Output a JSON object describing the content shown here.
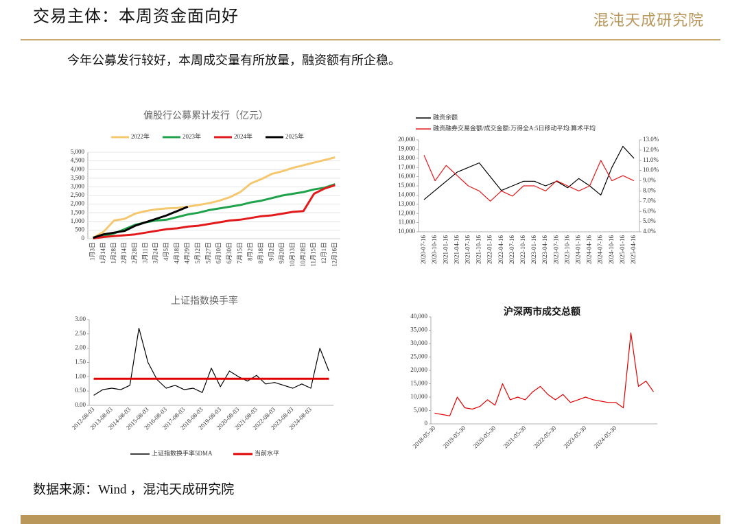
{
  "header": {
    "title": "交易主体：本周资金面向好",
    "logo": "混沌天成研究院"
  },
  "subtitle": "今年公募发行较好，本周成交量有所放量，融资额有所企稳。",
  "source": "数据来源：Wind ，混沌天成研究院",
  "chart_data": [
    {
      "type": "line",
      "title": "偏股行公募累计发行（亿元）",
      "categories": [
        "1月3日",
        "1月14日",
        "1月28日",
        "2月14日",
        "2月28日",
        "3月11日",
        "3月24日",
        "4月5日",
        "4月18日",
        "4月29日",
        "5月12日",
        "5月27日",
        "6月10日",
        "6月30日",
        "7月15日",
        "8月2日",
        "8月18日",
        "9月2日",
        "9月20日",
        "10月13日",
        "10月28日",
        "11月15日",
        "12月1日",
        "12月16日"
      ],
      "series": [
        {
          "name": "2022年",
          "color": "#f5c870",
          "values": [
            50,
            400,
            1050,
            1150,
            1450,
            1600,
            1700,
            1750,
            1780,
            1850,
            1950,
            2050,
            2200,
            2400,
            2700,
            3200,
            3450,
            3750,
            3900,
            4100,
            4250,
            4400,
            4550,
            4700
          ]
        },
        {
          "name": "2023年",
          "color": "#1fa34a",
          "values": [
            20,
            150,
            300,
            550,
            800,
            950,
            1050,
            1100,
            1250,
            1400,
            1500,
            1650,
            1750,
            1850,
            1950,
            2100,
            2200,
            2350,
            2500,
            2600,
            2700,
            2850,
            2950,
            3150
          ]
        },
        {
          "name": "2024年",
          "color": "#e31a1c",
          "values": [
            10,
            100,
            150,
            200,
            250,
            350,
            450,
            550,
            600,
            700,
            750,
            850,
            950,
            1050,
            1100,
            1200,
            1300,
            1350,
            1450,
            1550,
            1600,
            2600,
            2900,
            3100
          ]
        },
        {
          "name": "2025年",
          "color": "#000000",
          "values": [
            50,
            250,
            350,
            450,
            750,
            950,
            1150,
            1350,
            1600,
            1850,
            null,
            null,
            null,
            null,
            null,
            null,
            null,
            null,
            null,
            null,
            null,
            null,
            null,
            null
          ]
        }
      ],
      "ylim": [
        0,
        5000
      ],
      "yticks": [
        0,
        500,
        {
          "value": 1000,
          "label": "1,000"
        },
        {
          "value": 1500,
          "label": "1,500"
        },
        {
          "value": 2000,
          "label": "2,000"
        },
        {
          "value": 2500,
          "label": "2,500"
        },
        {
          "value": 3000,
          "label": "3,000"
        },
        {
          "value": 3500,
          "label": "3,500"
        },
        {
          "value": 4000,
          "label": "4,000"
        },
        {
          "value": 4500,
          "label": "4,500"
        },
        {
          "value": 5000,
          "label": "5,000"
        }
      ],
      "grid": true
    },
    {
      "type": "line",
      "categories": [
        "2020-07-16",
        "2020-10-16",
        "2021-01-16",
        "2021-04-16",
        "2021-07-16",
        "2021-10-16",
        "2022-01-16",
        "2022-04-16",
        "2022-07-16",
        "2022-10-16",
        "2023-01-16",
        "2023-04-16",
        "2023-07-16",
        "2023-10-16",
        "2024-01-16",
        "2024-04-16",
        "2024-07-16",
        "2024-10-16",
        "2025-01-16",
        "2025-04-16"
      ],
      "series": [
        {
          "name": "融资余额",
          "color": "#000000",
          "values": [
            13500,
            14500,
            15500,
            16500,
            17000,
            17500,
            16000,
            14500,
            15000,
            15500,
            15500,
            15000,
            15500,
            14800,
            15800,
            15000,
            14000,
            17000,
            19300,
            18000
          ]
        },
        {
          "name": "融资融券交易金额/成交金额:万得全A:5日移动平均:算术平均",
          "color": "#e31a1c",
          "axis": "y2",
          "values": [
            11.5,
            9.0,
            10.5,
            9.5,
            8.5,
            8.0,
            7.0,
            8.0,
            7.5,
            8.5,
            8.5,
            8.0,
            9.0,
            8.5,
            8.0,
            8.5,
            11.0,
            9.0,
            9.5,
            9.0
          ]
        }
      ],
      "ylim": [
        10000,
        20000
      ],
      "yticks": [
        {
          "value": 10000,
          "label": "10,000"
        },
        {
          "value": 11000,
          "label": "11,000"
        },
        {
          "value": 12000,
          "label": "12,000"
        },
        {
          "value": 13000,
          "label": "13,000"
        },
        {
          "value": 14000,
          "label": "14,000"
        },
        {
          "value": 15000,
          "label": "15,000"
        },
        {
          "value": 16000,
          "label": "16,000"
        },
        {
          "value": 17000,
          "label": "17,000"
        },
        {
          "value": 18000,
          "label": "18,000"
        },
        {
          "value": 19000,
          "label": "19,000"
        },
        {
          "value": 20000,
          "label": "20,000"
        }
      ],
      "y2lim": [
        4,
        13
      ],
      "y2ticks": [
        {
          "value": 4,
          "label": "4.0%"
        },
        {
          "value": 5,
          "label": "5.0%"
        },
        {
          "value": 6,
          "label": "6.0%"
        },
        {
          "value": 7,
          "label": "7.0%"
        },
        {
          "value": 8,
          "label": "8.0%"
        },
        {
          "value": 9,
          "label": "9.0%"
        },
        {
          "value": 10,
          "label": "10.0%"
        },
        {
          "value": 11,
          "label": "11.0%"
        },
        {
          "value": 12,
          "label": "12.0%"
        },
        {
          "value": 13,
          "label": "13.0%"
        }
      ],
      "grid": false
    },
    {
      "type": "line",
      "title": "上证指数换手率",
      "categories": [
        "2012-08-03",
        null,
        "2013-08-03",
        null,
        "2014-08-03",
        null,
        "2015-08-03",
        null,
        "2016-08-03",
        null,
        "2017-08-03",
        null,
        "2018-08-03",
        null,
        "2019-08-03",
        null,
        "2020-08-03",
        null,
        "2021-08-03",
        null,
        "2022-08-03",
        null,
        "2023-08-03",
        null,
        "2024-08-03",
        null,
        null
      ],
      "series": [
        {
          "name": "上证指数换手率5DMA",
          "color": "#000000",
          "values": [
            0.35,
            0.55,
            0.6,
            0.55,
            0.7,
            2.7,
            1.5,
            0.9,
            0.6,
            0.7,
            0.55,
            0.6,
            0.45,
            1.3,
            0.65,
            1.2,
            1.0,
            0.85,
            1.05,
            0.75,
            0.8,
            0.7,
            0.6,
            0.75,
            0.6,
            2.0,
            1.2
          ]
        },
        {
          "name": "当前水平",
          "color": "#e00000",
          "values": [
            0.93,
            0.93,
            0.93,
            0.93,
            0.93,
            0.93,
            0.93,
            0.93,
            0.93,
            0.93,
            0.93,
            0.93,
            0.93,
            0.93,
            0.93,
            0.93,
            0.93,
            0.93,
            0.93,
            0.93,
            0.93,
            0.93,
            0.93,
            0.93,
            0.93,
            0.93,
            0.93
          ]
        }
      ],
      "ylim": [
        0,
        3
      ],
      "yticks": [
        {
          "value": 0,
          "label": "0.00"
        },
        {
          "value": 0.5,
          "label": "0.50"
        },
        {
          "value": 1,
          "label": "1.00"
        },
        {
          "value": 1.5,
          "label": "1.50"
        },
        {
          "value": 2,
          "label": "2.00"
        },
        {
          "value": 2.5,
          "label": "2.50"
        },
        {
          "value": 3,
          "label": "3.00"
        }
      ],
      "grid": false
    },
    {
      "type": "line",
      "title": "沪深两市成交总额",
      "categories": [
        "2018-05-30",
        null,
        null,
        null,
        "2019-05-30",
        null,
        null,
        null,
        "2020-05-30",
        null,
        null,
        null,
        "2021-05-30",
        null,
        null,
        null,
        "2022-05-30",
        null,
        null,
        null,
        "2023-05-30",
        null,
        null,
        null,
        "2024-05-30",
        null,
        null,
        null,
        null,
        null
      ],
      "values": [
        4000,
        3500,
        3000,
        10000,
        6000,
        5500,
        6500,
        9000,
        7000,
        15000,
        9000,
        10000,
        9000,
        12000,
        14000,
        11000,
        9000,
        11000,
        8000,
        9000,
        10000,
        9000,
        8500,
        8000,
        8000,
        6000,
        34000,
        14000,
        16000,
        12000
      ],
      "color": "#e00000",
      "ylim": [
        0,
        40000
      ],
      "yticks": [
        0,
        {
          "value": 5000,
          "label": "5,000"
        },
        {
          "value": 10000,
          "label": "10,000"
        },
        {
          "value": 15000,
          "label": "15,000"
        },
        {
          "value": 20000,
          "label": "20,000"
        },
        {
          "value": 25000,
          "label": "25,000"
        },
        {
          "value": 30000,
          "label": "30,000"
        },
        {
          "value": 35000,
          "label": "35,000"
        },
        {
          "value": 40000,
          "label": "40,000"
        }
      ],
      "grid": false
    }
  ]
}
